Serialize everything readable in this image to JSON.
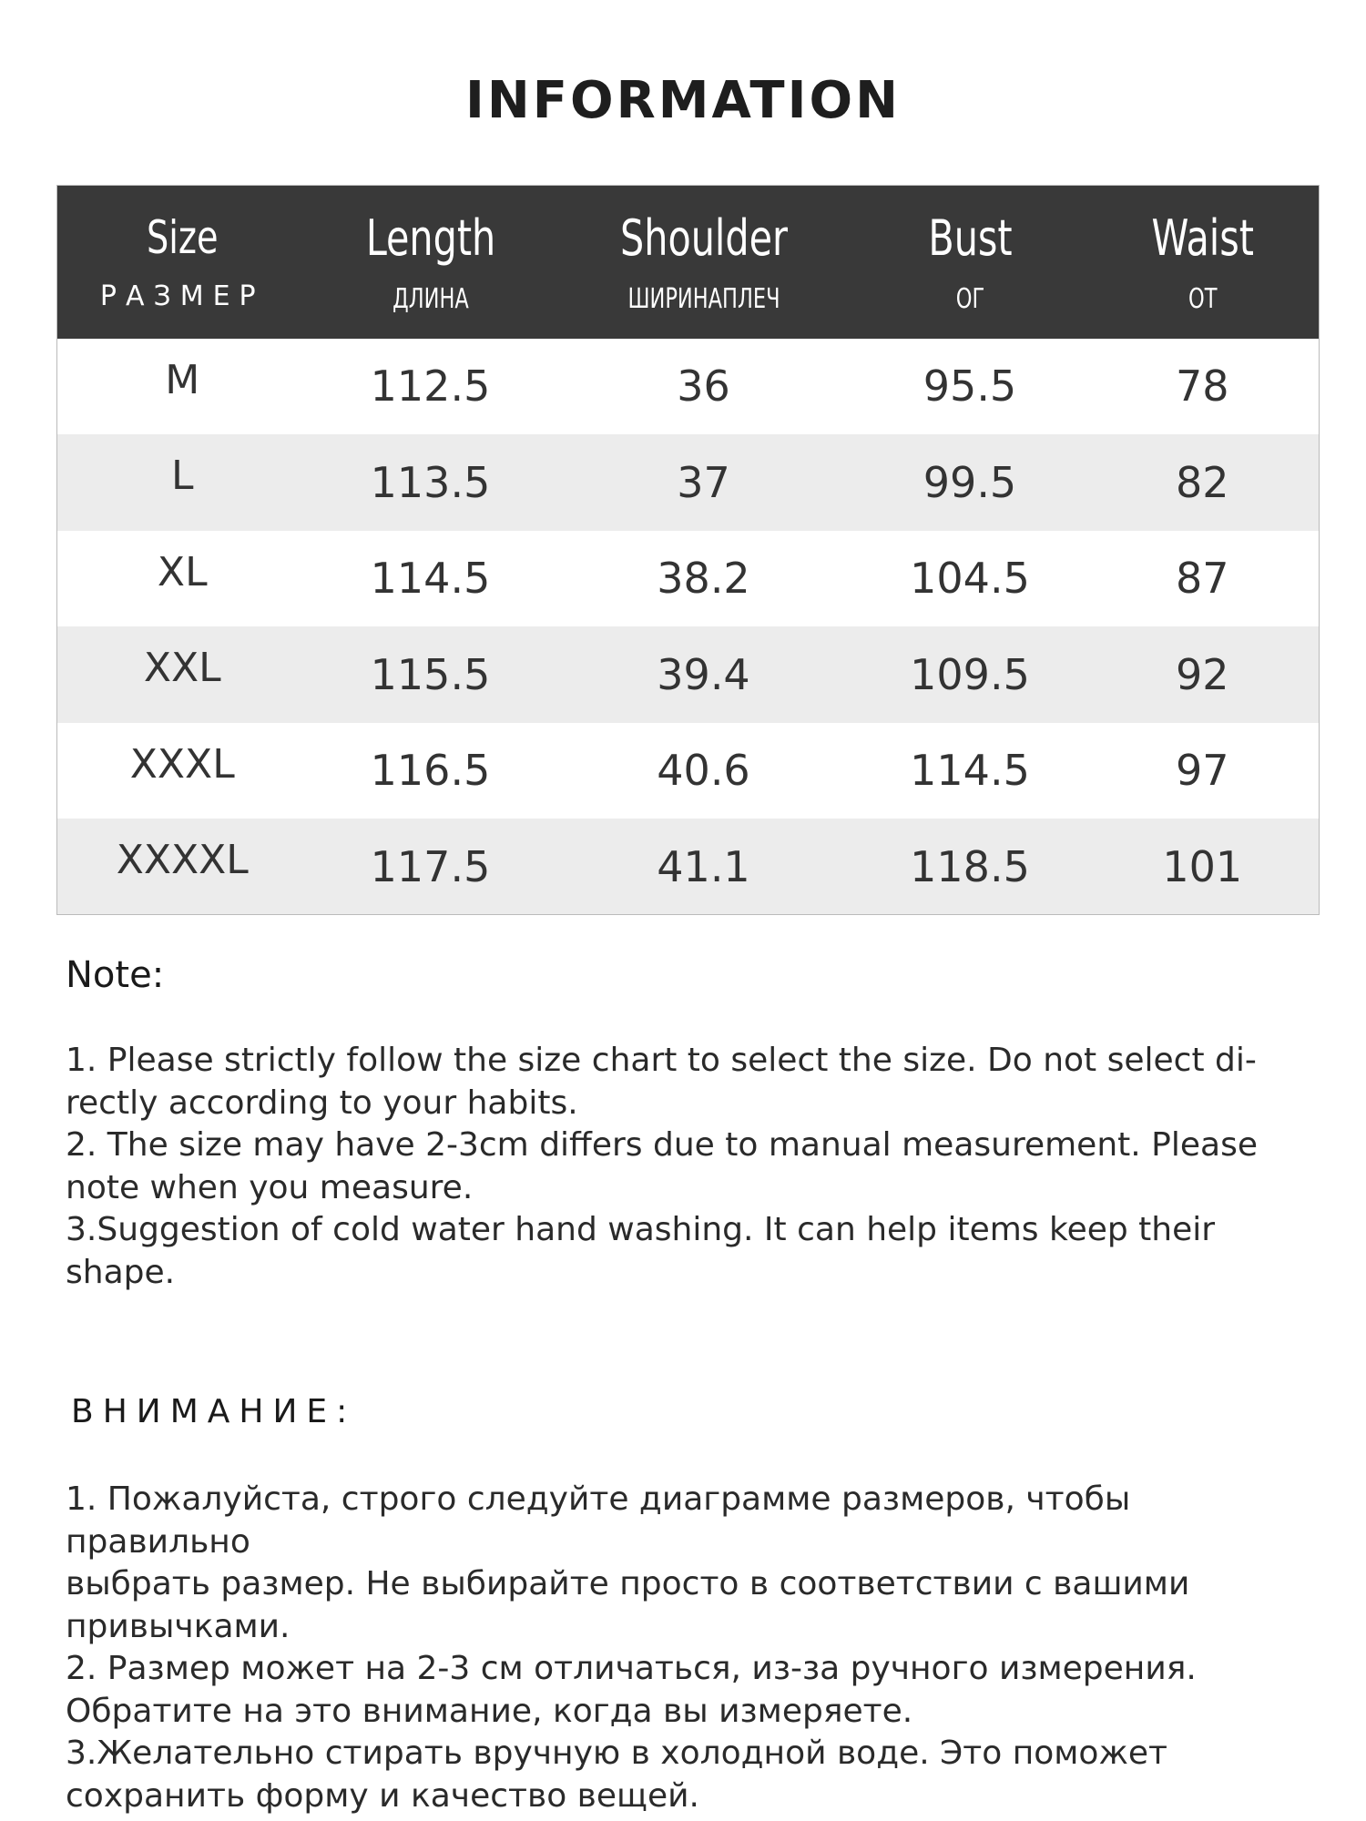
{
  "title": "INFORMATION",
  "table": {
    "headers": [
      {
        "en": "Size",
        "ru": "РАЗМЕР"
      },
      {
        "en": "Length",
        "ru": "ДЛИНА"
      },
      {
        "en": "Shoulder",
        "ru": "ШИРИНАПЛЕЧ"
      },
      {
        "en": "Bust",
        "ru": "ОГ"
      },
      {
        "en": "Waist",
        "ru": "ОТ"
      }
    ],
    "rows": [
      [
        "M",
        "112.5",
        "36",
        "95.5",
        "78"
      ],
      [
        "L",
        "113.5",
        "37",
        "99.5",
        "82"
      ],
      [
        "XL",
        "114.5",
        "38.2",
        "104.5",
        "87"
      ],
      [
        "XXL",
        "115.5",
        "39.4",
        "109.5",
        "92"
      ],
      [
        "XXXL",
        "116.5",
        "40.6",
        "114.5",
        "97"
      ],
      [
        "XXXXL",
        "117.5",
        "41.1",
        "118.5",
        "101"
      ]
    ]
  },
  "note": {
    "heading": "Note:",
    "lines": [
      "1. Please strictly follow the size chart  to select the size. Do not select di-",
      "rectly according to your habits.",
      "2. The size may have 2-3cm differs due to manual measurement. Please",
      "note when you measure.",
      "3.Suggestion of cold water hand washing. It can help items keep their",
      "shape."
    ]
  },
  "attention": {
    "heading": "ВНИМАНИЕ:",
    "lines": [
      "1. Пожалуйста, строго следуйте диаграмме размеров, чтобы правильно",
      "выбрать размер. Не выбирайте просто в соответствии с вашими",
      "привычками.",
      "2. Размер может на 2-3 см отличаться, из-за ручного измерения.",
      "Обратите на это внимание, когда вы измеряете.",
      "3.Желательно стирать вручную в холодной воде. Это поможет",
      "сохранить форму и качество вещей."
    ]
  },
  "colors": {
    "header_bg": "#393939",
    "stripe": "#ececec"
  }
}
